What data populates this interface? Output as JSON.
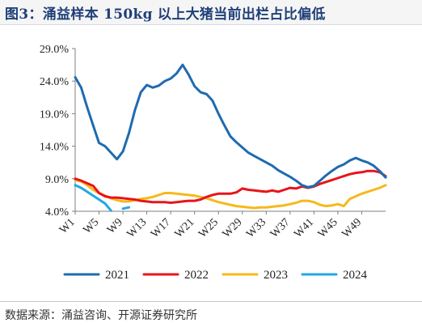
{
  "title": "图3：涌益样本 150kg 以上大猪当前出栏占比偏低",
  "source": "数据来源：涌益咨询、开源证券研究所",
  "colors": {
    "2021": "#1f6bb0",
    "2022": "#e8141b",
    "2023": "#f6b91b",
    "2024": "#22a8e3"
  },
  "chart_data": {
    "type": "line",
    "ylim": [
      4.0,
      29.0
    ],
    "y_ticks": [
      "4.0%",
      "9.0%",
      "14.0%",
      "19.0%",
      "24.0%",
      "29.0%"
    ],
    "y_tick_values": [
      4,
      9,
      14,
      19,
      24,
      29
    ],
    "x_tick_labels": [
      "W1",
      "W5",
      "W9",
      "W13",
      "W17",
      "W21",
      "W25",
      "W29",
      "W33",
      "W37",
      "W41",
      "W45",
      "W49"
    ],
    "x_tick_weeks": [
      1,
      5,
      9,
      13,
      17,
      21,
      25,
      29,
      33,
      37,
      41,
      45,
      49
    ],
    "x_range": [
      1,
      53
    ],
    "series": [
      {
        "name": "2021",
        "x": [
          1,
          2,
          3,
          4,
          5,
          6,
          7,
          8,
          9,
          10,
          11,
          12,
          13,
          14,
          15,
          16,
          17,
          18,
          19,
          20,
          21,
          22,
          23,
          24,
          25,
          26,
          27,
          28,
          29,
          30,
          31,
          32,
          33,
          34,
          35,
          36,
          37,
          38,
          39,
          40,
          41,
          42,
          43,
          44,
          45,
          46,
          47,
          48,
          49,
          50,
          51,
          52,
          53
        ],
        "values": [
          24.6,
          23.0,
          20.0,
          17.2,
          14.5,
          14.0,
          13.0,
          12.0,
          13.2,
          16.0,
          19.5,
          22.3,
          23.4,
          23.0,
          23.3,
          24.0,
          24.4,
          25.2,
          26.5,
          25.0,
          23.2,
          22.3,
          22.0,
          21.0,
          19.0,
          17.2,
          15.5,
          14.6,
          13.8,
          13.0,
          12.5,
          12.0,
          11.5,
          11.0,
          10.3,
          9.8,
          9.3,
          8.7,
          8.0,
          7.7,
          7.9,
          8.7,
          9.5,
          10.2,
          10.8,
          11.2,
          11.8,
          12.2,
          11.8,
          11.5,
          11.0,
          10.2,
          9.2
        ]
      },
      {
        "name": "2022",
        "x": [
          1,
          2,
          3,
          4,
          5,
          6,
          7,
          8,
          9,
          10,
          11,
          12,
          13,
          14,
          15,
          16,
          17,
          18,
          19,
          20,
          21,
          22,
          23,
          24,
          25,
          26,
          27,
          28,
          29,
          30,
          31,
          32,
          33,
          34,
          35,
          36,
          37,
          38,
          39,
          40,
          41,
          42,
          43,
          44,
          45,
          46,
          47,
          48,
          49,
          50,
          51,
          52,
          53
        ],
        "values": [
          9.0,
          8.7,
          8.3,
          7.9,
          6.8,
          6.3,
          6.1,
          6.1,
          6.0,
          5.9,
          5.8,
          5.6,
          5.5,
          5.4,
          5.4,
          5.4,
          5.3,
          5.4,
          5.5,
          5.6,
          5.6,
          5.8,
          6.2,
          6.5,
          6.7,
          6.7,
          6.7,
          6.9,
          7.5,
          7.3,
          7.2,
          7.1,
          7.0,
          7.2,
          7.0,
          7.3,
          7.6,
          7.5,
          7.8,
          7.6,
          7.8,
          8.2,
          8.5,
          8.8,
          9.1,
          9.4,
          9.7,
          9.9,
          10.0,
          10.2,
          10.2,
          10.0,
          9.4
        ]
      },
      {
        "name": "2023",
        "x": [
          1,
          2,
          3,
          4,
          5,
          6,
          7,
          8,
          9,
          10,
          11,
          12,
          13,
          14,
          15,
          16,
          17,
          18,
          19,
          20,
          21,
          22,
          23,
          24,
          25,
          26,
          27,
          28,
          29,
          30,
          31,
          32,
          33,
          34,
          35,
          36,
          37,
          38,
          39,
          40,
          41,
          42,
          43,
          44,
          45,
          46,
          47,
          48,
          49,
          50,
          51,
          52,
          53
        ],
        "values": [
          8.8,
          8.6,
          8.0,
          7.3,
          6.8,
          6.4,
          6.0,
          5.7,
          5.5,
          5.5,
          5.7,
          5.9,
          6.0,
          6.2,
          6.5,
          6.8,
          6.8,
          6.7,
          6.6,
          6.5,
          6.4,
          6.2,
          6.0,
          5.7,
          5.4,
          5.2,
          5.0,
          4.8,
          4.7,
          4.6,
          4.5,
          4.6,
          4.6,
          4.7,
          4.8,
          4.9,
          5.1,
          5.3,
          5.6,
          5.6,
          5.4,
          5.0,
          4.8,
          4.9,
          5.1,
          4.8,
          5.9,
          6.3,
          6.7,
          7.0,
          7.3,
          7.6,
          8.0
        ]
      },
      {
        "name": "2024",
        "x": [
          1,
          2,
          3,
          4,
          5,
          6,
          7,
          8,
          9,
          10
        ],
        "values": [
          8.0,
          7.6,
          7.0,
          6.4,
          5.8,
          5.2,
          4.1,
          null,
          4.4,
          4.6
        ]
      }
    ]
  }
}
